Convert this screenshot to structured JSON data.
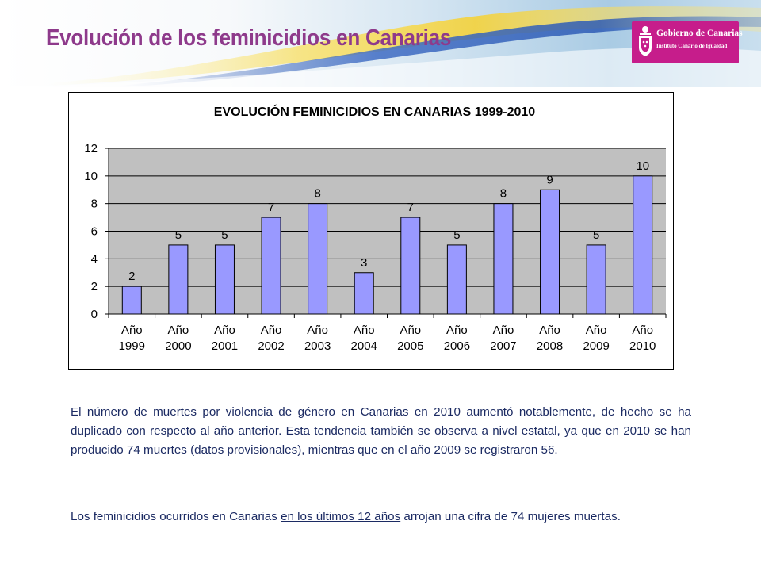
{
  "slide": {
    "title": "Evolución de los feminicidios en Canarias",
    "logo": {
      "line1": "Gobierno de Canarias",
      "line2": "Instituto Canario de Igualdad"
    }
  },
  "colors": {
    "title": "#8e3a8b",
    "bar_fill": "#9999ff",
    "plot_bg": "#c0c0c0",
    "logo_bg": "#c61d8b",
    "body_text": "#1c2b63"
  },
  "chart_data": {
    "type": "bar",
    "title": "EVOLUCIÓN FEMINICIDIOS EN CANARIAS 1999-2010",
    "categories": [
      "Año 1999",
      "Año 2000",
      "Año 2001",
      "Año 2002",
      "Año 2003",
      "Año 2004",
      "Año 2005",
      "Año 2006",
      "Año 2007",
      "Año 2008",
      "Año 2009",
      "Año 2010"
    ],
    "category_lines": [
      [
        "Año",
        "1999"
      ],
      [
        "Año",
        "2000"
      ],
      [
        "Año",
        "2001"
      ],
      [
        "Año",
        "2002"
      ],
      [
        "Año",
        "2003"
      ],
      [
        "Año",
        "2004"
      ],
      [
        "Año",
        "2005"
      ],
      [
        "Año",
        "2006"
      ],
      [
        "Año",
        "2007"
      ],
      [
        "Año",
        "2008"
      ],
      [
        "Año",
        "2009"
      ],
      [
        "Año",
        "2010"
      ]
    ],
    "values": [
      2,
      5,
      5,
      7,
      8,
      3,
      7,
      5,
      8,
      9,
      5,
      10
    ],
    "ylim": [
      0,
      12
    ],
    "yticks": [
      0,
      2,
      4,
      6,
      8,
      10,
      12
    ],
    "grid": true,
    "legend": "none",
    "xlabel": "",
    "ylabel": ""
  },
  "text": {
    "p1": "El número de muertes por violencia de género en Canarias en 2010 aumentó notablemente, de hecho se ha duplicado con respecto al año anterior. Esta tendencia también se observa a nivel estatal, ya que en 2010 se han producido 74 muertes (datos provisionales), mientras que en el año 2009 se registraron 56.",
    "p2_before": "Los feminicidios ocurridos en Canarias ",
    "p2_underlined": "en los últimos 12 años",
    "p2_after": " arrojan una cifra de 74 mujeres muertas."
  }
}
